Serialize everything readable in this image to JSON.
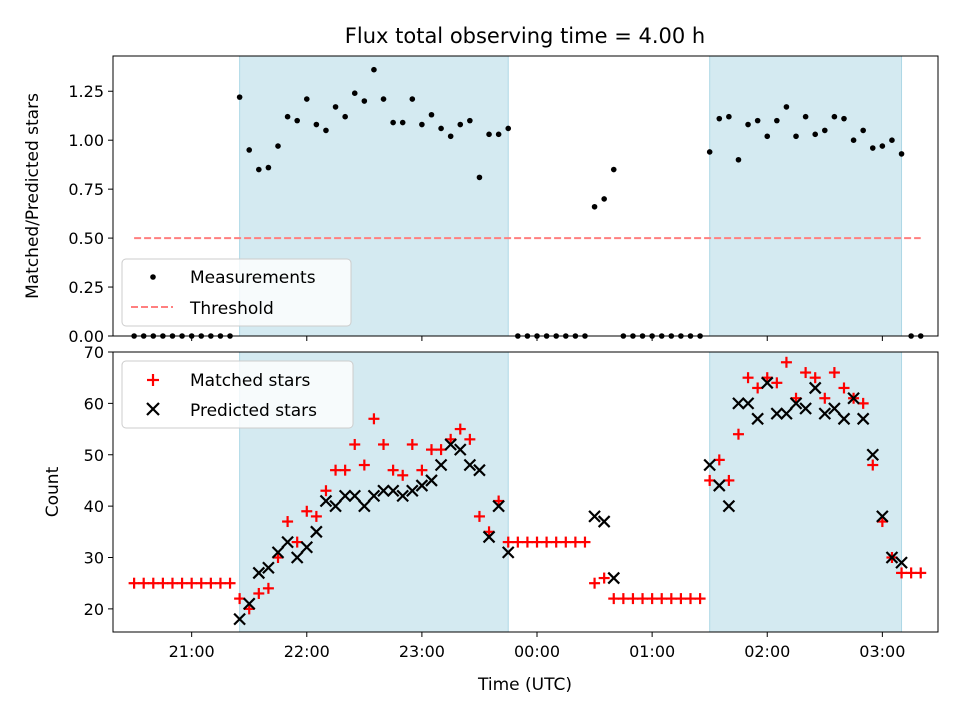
{
  "chart_data": [
    {
      "type": "scatter",
      "title": "Flux total observing time = 4.00 h",
      "ylabel": "Matched/Predicted stars",
      "ylim": [
        0,
        1.43
      ],
      "yticks": [
        "0.00",
        "0.25",
        "0.50",
        "0.75",
        "1.00",
        "1.25"
      ],
      "shaded_intervals": [
        [
          "21:25",
          "23:45"
        ],
        [
          "01:30",
          "03:10"
        ]
      ],
      "legend": {
        "placement": "lower-left",
        "entries": [
          "Measurements",
          "Threshold"
        ]
      },
      "threshold": {
        "name": "Threshold",
        "value": 0.5,
        "x_range": [
          "20:30",
          "03:20"
        ]
      },
      "series": [
        {
          "name": "Measurements",
          "points": [
            [
              "20:30",
              0
            ],
            [
              "20:35",
              0
            ],
            [
              "20:40",
              0
            ],
            [
              "20:45",
              0
            ],
            [
              "20:50",
              0
            ],
            [
              "20:55",
              0
            ],
            [
              "21:00",
              0
            ],
            [
              "21:05",
              0
            ],
            [
              "21:10",
              0
            ],
            [
              "21:15",
              0
            ],
            [
              "21:20",
              0
            ],
            [
              "21:25",
              1.22
            ],
            [
              "21:30",
              0.95
            ],
            [
              "21:35",
              0.85
            ],
            [
              "21:40",
              0.86
            ],
            [
              "21:45",
              0.97
            ],
            [
              "21:50",
              1.12
            ],
            [
              "21:55",
              1.1
            ],
            [
              "22:00",
              1.21
            ],
            [
              "22:05",
              1.08
            ],
            [
              "22:10",
              1.05
            ],
            [
              "22:15",
              1.17
            ],
            [
              "22:20",
              1.12
            ],
            [
              "22:25",
              1.24
            ],
            [
              "22:30",
              1.2
            ],
            [
              "22:35",
              1.36
            ],
            [
              "22:40",
              1.21
            ],
            [
              "22:45",
              1.09
            ],
            [
              "22:50",
              1.09
            ],
            [
              "22:55",
              1.21
            ],
            [
              "23:00",
              1.08
            ],
            [
              "23:05",
              1.13
            ],
            [
              "23:10",
              1.06
            ],
            [
              "23:15",
              1.02
            ],
            [
              "23:20",
              1.08
            ],
            [
              "23:25",
              1.1
            ],
            [
              "23:30",
              0.81
            ],
            [
              "23:35",
              1.03
            ],
            [
              "23:40",
              1.03
            ],
            [
              "23:45",
              1.06
            ],
            [
              "23:50",
              0
            ],
            [
              "23:55",
              0
            ],
            [
              "00:00",
              0
            ],
            [
              "00:05",
              0
            ],
            [
              "00:10",
              0
            ],
            [
              "00:15",
              0
            ],
            [
              "00:20",
              0
            ],
            [
              "00:25",
              0
            ],
            [
              "00:30",
              0.66
            ],
            [
              "00:35",
              0.7
            ],
            [
              "00:40",
              0.85
            ],
            [
              "00:45",
              0
            ],
            [
              "00:50",
              0
            ],
            [
              "00:55",
              0
            ],
            [
              "01:00",
              0
            ],
            [
              "01:05",
              0
            ],
            [
              "01:10",
              0
            ],
            [
              "01:15",
              0
            ],
            [
              "01:20",
              0
            ],
            [
              "01:25",
              0
            ],
            [
              "01:30",
              0.94
            ],
            [
              "01:35",
              1.11
            ],
            [
              "01:40",
              1.12
            ],
            [
              "01:45",
              0.9
            ],
            [
              "01:50",
              1.08
            ],
            [
              "01:55",
              1.1
            ],
            [
              "02:00",
              1.02
            ],
            [
              "02:05",
              1.1
            ],
            [
              "02:10",
              1.17
            ],
            [
              "02:15",
              1.02
            ],
            [
              "02:20",
              1.12
            ],
            [
              "02:25",
              1.03
            ],
            [
              "02:30",
              1.05
            ],
            [
              "02:35",
              1.12
            ],
            [
              "02:40",
              1.11
            ],
            [
              "02:45",
              1.0
            ],
            [
              "02:50",
              1.05
            ],
            [
              "02:55",
              0.96
            ],
            [
              "03:00",
              0.97
            ],
            [
              "03:05",
              1.0
            ],
            [
              "03:10",
              0.93
            ],
            [
              "03:15",
              0
            ],
            [
              "03:20",
              0
            ]
          ]
        }
      ]
    },
    {
      "type": "scatter",
      "xlabel": "Time (UTC)",
      "ylabel": "Count",
      "ylim": [
        15.5,
        70
      ],
      "yticks": [
        "20",
        "30",
        "40",
        "50",
        "60",
        "70"
      ],
      "xticks": [
        "21:00",
        "22:00",
        "23:00",
        "00:00",
        "01:00",
        "02:00",
        "03:00"
      ],
      "xlim": [
        "20:19",
        "03:29"
      ],
      "shaded_intervals": [
        [
          "21:25",
          "23:45"
        ],
        [
          "01:30",
          "03:10"
        ]
      ],
      "legend": {
        "placement": "upper-left",
        "entries": [
          "Matched stars",
          "Predicted stars"
        ]
      },
      "series": [
        {
          "name": "Matched stars",
          "points": [
            [
              "20:30",
              25
            ],
            [
              "20:35",
              25
            ],
            [
              "20:40",
              25
            ],
            [
              "20:45",
              25
            ],
            [
              "20:50",
              25
            ],
            [
              "20:55",
              25
            ],
            [
              "21:00",
              25
            ],
            [
              "21:05",
              25
            ],
            [
              "21:10",
              25
            ],
            [
              "21:15",
              25
            ],
            [
              "21:20",
              25
            ],
            [
              "21:25",
              22
            ],
            [
              "21:30",
              20
            ],
            [
              "21:35",
              23
            ],
            [
              "21:40",
              24
            ],
            [
              "21:45",
              30
            ],
            [
              "21:50",
              37
            ],
            [
              "21:55",
              33
            ],
            [
              "22:00",
              39
            ],
            [
              "22:05",
              38
            ],
            [
              "22:10",
              43
            ],
            [
              "22:15",
              47
            ],
            [
              "22:20",
              47
            ],
            [
              "22:25",
              52
            ],
            [
              "22:30",
              48
            ],
            [
              "22:35",
              57
            ],
            [
              "22:40",
              52
            ],
            [
              "22:45",
              47
            ],
            [
              "22:50",
              46
            ],
            [
              "22:55",
              52
            ],
            [
              "23:00",
              47
            ],
            [
              "23:05",
              51
            ],
            [
              "23:10",
              51
            ],
            [
              "23:15",
              53
            ],
            [
              "23:20",
              55
            ],
            [
              "23:25",
              53
            ],
            [
              "23:30",
              38
            ],
            [
              "23:35",
              35
            ],
            [
              "23:40",
              41
            ],
            [
              "23:45",
              33
            ],
            [
              "23:50",
              33
            ],
            [
              "23:55",
              33
            ],
            [
              "00:00",
              33
            ],
            [
              "00:05",
              33
            ],
            [
              "00:10",
              33
            ],
            [
              "00:15",
              33
            ],
            [
              "00:20",
              33
            ],
            [
              "00:25",
              33
            ],
            [
              "00:30",
              25
            ],
            [
              "00:35",
              26
            ],
            [
              "00:40",
              22
            ],
            [
              "00:45",
              22
            ],
            [
              "00:50",
              22
            ],
            [
              "00:55",
              22
            ],
            [
              "01:00",
              22
            ],
            [
              "01:05",
              22
            ],
            [
              "01:10",
              22
            ],
            [
              "01:15",
              22
            ],
            [
              "01:20",
              22
            ],
            [
              "01:25",
              22
            ],
            [
              "01:30",
              45
            ],
            [
              "01:35",
              49
            ],
            [
              "01:40",
              45
            ],
            [
              "01:45",
              54
            ],
            [
              "01:50",
              65
            ],
            [
              "01:55",
              63
            ],
            [
              "02:00",
              65
            ],
            [
              "02:05",
              64
            ],
            [
              "02:10",
              68
            ],
            [
              "02:15",
              61
            ],
            [
              "02:20",
              66
            ],
            [
              "02:25",
              65
            ],
            [
              "02:30",
              61
            ],
            [
              "02:35",
              66
            ],
            [
              "02:40",
              63
            ],
            [
              "02:45",
              61
            ],
            [
              "02:50",
              60
            ],
            [
              "02:55",
              48
            ],
            [
              "03:00",
              37
            ],
            [
              "03:05",
              30
            ],
            [
              "03:10",
              27
            ],
            [
              "03:15",
              27
            ],
            [
              "03:20",
              27
            ]
          ]
        },
        {
          "name": "Predicted stars",
          "points": [
            [
              "21:25",
              18
            ],
            [
              "21:30",
              21
            ],
            [
              "21:35",
              27
            ],
            [
              "21:40",
              28
            ],
            [
              "21:45",
              31
            ],
            [
              "21:50",
              33
            ],
            [
              "21:55",
              30
            ],
            [
              "22:00",
              32
            ],
            [
              "22:05",
              35
            ],
            [
              "22:10",
              41
            ],
            [
              "22:15",
              40
            ],
            [
              "22:20",
              42
            ],
            [
              "22:25",
              42
            ],
            [
              "22:30",
              40
            ],
            [
              "22:35",
              42
            ],
            [
              "22:40",
              43
            ],
            [
              "22:45",
              43
            ],
            [
              "22:50",
              42
            ],
            [
              "22:55",
              43
            ],
            [
              "23:00",
              44
            ],
            [
              "23:05",
              45
            ],
            [
              "23:10",
              48
            ],
            [
              "23:15",
              52
            ],
            [
              "23:20",
              51
            ],
            [
              "23:25",
              48
            ],
            [
              "23:30",
              47
            ],
            [
              "23:35",
              34
            ],
            [
              "23:40",
              40
            ],
            [
              "23:45",
              31
            ],
            [
              "00:30",
              38
            ],
            [
              "00:35",
              37
            ],
            [
              "00:40",
              26
            ],
            [
              "01:30",
              48
            ],
            [
              "01:35",
              44
            ],
            [
              "01:40",
              40
            ],
            [
              "01:45",
              60
            ],
            [
              "01:50",
              60
            ],
            [
              "01:55",
              57
            ],
            [
              "02:00",
              64
            ],
            [
              "02:05",
              58
            ],
            [
              "02:10",
              58
            ],
            [
              "02:15",
              60
            ],
            [
              "02:20",
              59
            ],
            [
              "02:25",
              63
            ],
            [
              "02:30",
              58
            ],
            [
              "02:35",
              59
            ],
            [
              "02:40",
              57
            ],
            [
              "02:45",
              61
            ],
            [
              "02:50",
              57
            ],
            [
              "02:55",
              50
            ],
            [
              "03:00",
              38
            ],
            [
              "03:05",
              30
            ],
            [
              "03:10",
              29
            ]
          ]
        }
      ]
    }
  ],
  "colors": {
    "shade": "#d4eaf1",
    "shade_edge": "#add8e6",
    "measurement": "#000000",
    "threshold": "#ff7f7f",
    "matched": "#ff0000",
    "predicted": "#000000"
  }
}
